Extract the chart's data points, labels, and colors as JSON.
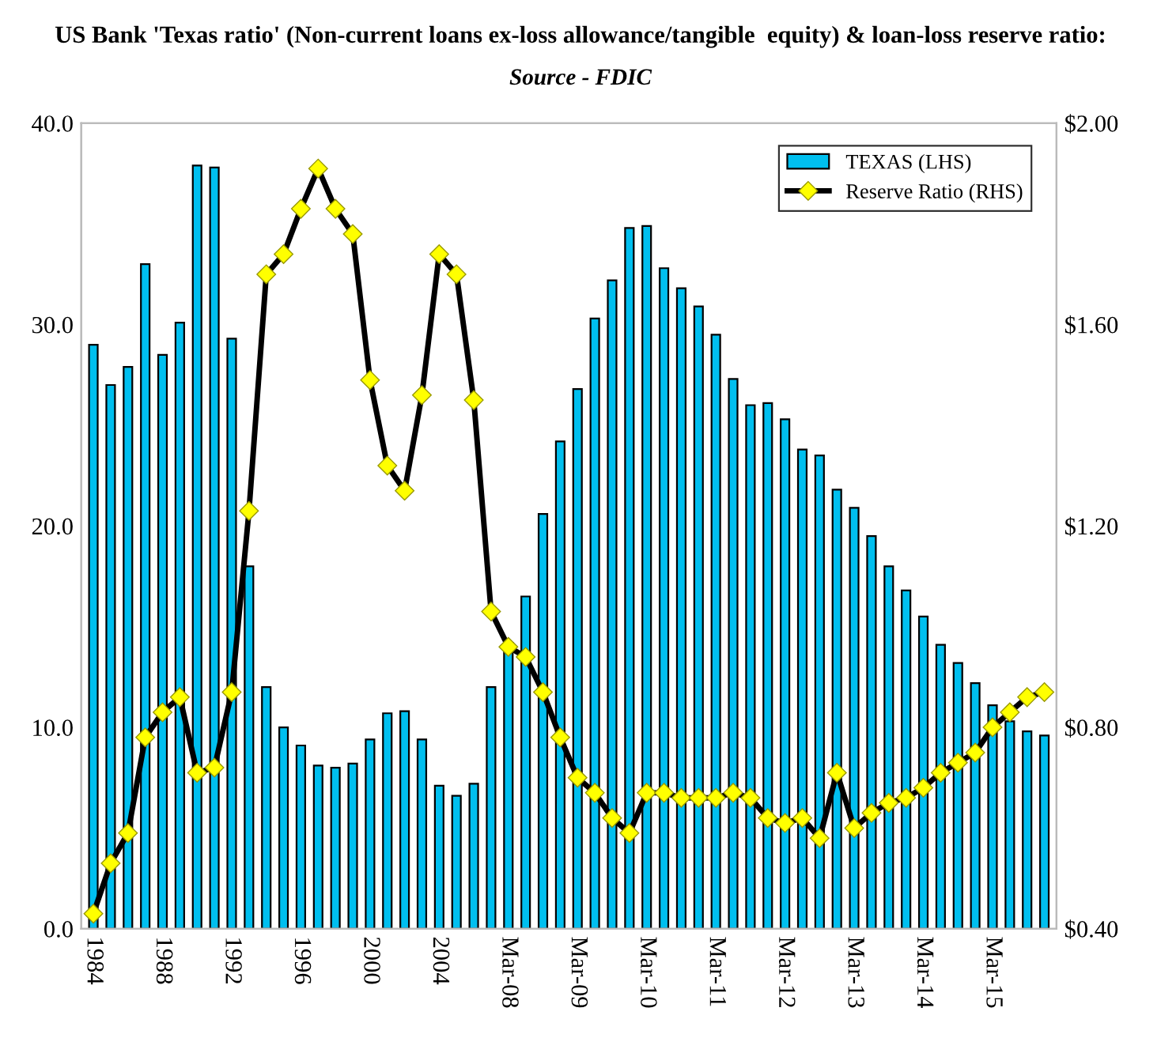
{
  "chart_data": {
    "type": "bar",
    "title": "US Bank 'Texas ratio' (Non-current loans ex-loss allowance/tangible  equity) & loan-loss reserve ratio:",
    "subtitle": "Source - FDIC",
    "categories": [
      "1984",
      null,
      null,
      null,
      "1988",
      null,
      null,
      null,
      "1992",
      null,
      null,
      null,
      "1996",
      null,
      null,
      null,
      "2000",
      null,
      null,
      null,
      "2004",
      null,
      null,
      null,
      "Mar-08",
      null,
      null,
      null,
      "Mar-09",
      null,
      null,
      null,
      "Mar-10",
      null,
      null,
      null,
      "Mar-11",
      null,
      null,
      null,
      "Mar-12",
      null,
      null,
      null,
      "Mar-13",
      null,
      null,
      null,
      "Mar-14",
      null,
      null,
      null,
      "Mar-15",
      null,
      null,
      null
    ],
    "series": [
      {
        "name": "TEXAS (LHS)",
        "type": "bar",
        "color": "#00bfef",
        "values": [
          29.0,
          27.0,
          27.9,
          33.0,
          28.5,
          30.1,
          37.9,
          37.8,
          29.3,
          18.0,
          12.0,
          10.0,
          9.1,
          8.1,
          8.0,
          8.2,
          9.4,
          10.7,
          10.8,
          9.4,
          7.1,
          6.6,
          7.2,
          12.0,
          14.2,
          16.5,
          20.6,
          24.2,
          26.8,
          30.3,
          32.2,
          34.8,
          34.9,
          32.8,
          31.8,
          30.9,
          29.5,
          27.3,
          26.0,
          26.1,
          25.3,
          23.8,
          23.5,
          21.8,
          20.9,
          19.5,
          18.0,
          16.8,
          15.5,
          14.1,
          13.2,
          12.2,
          11.1,
          10.3,
          9.8,
          9.6
        ]
      },
      {
        "name": "Reserve Ratio (RHS)",
        "type": "line",
        "axis": "y2",
        "color": "#000000",
        "marker": "diamond",
        "values": [
          0.43,
          0.53,
          0.59,
          0.78,
          0.83,
          0.86,
          0.71,
          0.72,
          0.87,
          1.23,
          1.7,
          1.74,
          1.83,
          1.91,
          1.83,
          1.78,
          1.49,
          1.32,
          1.27,
          1.46,
          1.74,
          1.7,
          1.45,
          1.03,
          0.96,
          0.94,
          0.87,
          0.78,
          0.7,
          0.67,
          0.62,
          0.59,
          0.67,
          0.67,
          0.66,
          0.66,
          0.66,
          0.67,
          0.66,
          0.62,
          0.61,
          0.62,
          0.58,
          0.71,
          0.6,
          0.63,
          0.65,
          0.66,
          0.68,
          0.71,
          0.73,
          0.75,
          0.8,
          0.83,
          0.86,
          0.87
        ]
      }
    ],
    "ylim": [
      0,
      40
    ],
    "yticks": [
      {
        "value": 0,
        "label": "0.0"
      },
      {
        "value": 10,
        "label": "10.0"
      },
      {
        "value": 20,
        "label": "20.0"
      },
      {
        "value": 30,
        "label": "30.0"
      },
      {
        "value": 40,
        "label": "40.0"
      }
    ],
    "y2lim": [
      0.4,
      2.0
    ],
    "y2ticks": [
      {
        "value": 0.4,
        "label": "$0.40"
      },
      {
        "value": 0.8,
        "label": "$0.80"
      },
      {
        "value": 1.2,
        "label": "$1.20"
      },
      {
        "value": 1.6,
        "label": "$1.60"
      },
      {
        "value": 2.0,
        "label": "$2.00"
      }
    ],
    "grid": false,
    "legend": "top right"
  }
}
